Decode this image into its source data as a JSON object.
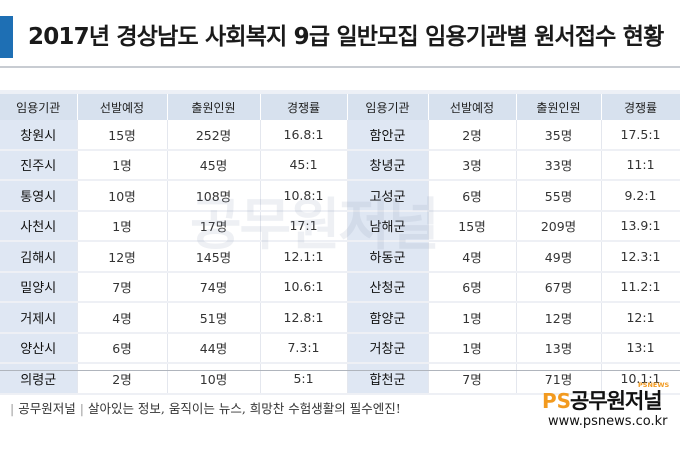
{
  "title": "2017년 경상남도 사회복지 9급 일반모집 임용기관별 원서접수 현황",
  "headers": [
    "임용기관",
    "선발예정",
    "출원인원",
    "경쟁률",
    "임용기관",
    "선발예정",
    "출원인원",
    "경쟁률"
  ],
  "rows": [
    [
      "창원시",
      "15명",
      "252명",
      "16.8:1",
      "함안군",
      "2명",
      "35명",
      "17.5:1"
    ],
    [
      "진주시",
      "1명",
      "45명",
      "45:1",
      "창녕군",
      "3명",
      "33명",
      "11:1"
    ],
    [
      "통영시",
      "10명",
      "108명",
      "10.8:1",
      "고성군",
      "6명",
      "55명",
      "9.2:1"
    ],
    [
      "사천시",
      "1명",
      "17명",
      "17:1",
      "남해군",
      "15명",
      "209명",
      "13.9:1"
    ],
    [
      "김해시",
      "12명",
      "145명",
      "12.1:1",
      "하동군",
      "4명",
      "49명",
      "12.3:1"
    ],
    [
      "밀양시",
      "7명",
      "74명",
      "10.6:1",
      "산청군",
      "6명",
      "67명",
      "11.2:1"
    ],
    [
      "거제시",
      "4명",
      "51명",
      "12.8:1",
      "함양군",
      "1명",
      "12명",
      "12:1"
    ],
    [
      "양산시",
      "6명",
      "44명",
      "7.3:1",
      "거창군",
      "1명",
      "13명",
      "13:1"
    ],
    [
      "의령군",
      "2명",
      "10명",
      "5:1",
      "합천군",
      "7명",
      "71명",
      "10.1:1"
    ]
  ],
  "watermark": "공무원저널",
  "footer": {
    "brand": "공무원저널",
    "slogan": "살아있는 정보, 움직이는 뉴스, 희망찬 수험생활의 필수엔진!",
    "logo_ps": "PS",
    "logo_text": "공무원저널",
    "logo_small": "PSNEWS",
    "url": "www.psnews.co.kr"
  },
  "colors": {
    "accent": "#1e6fb4",
    "header_bg": "#d7e1ee",
    "org_bg": "#dfe7f3",
    "logo_orange": "#f29a1f"
  }
}
